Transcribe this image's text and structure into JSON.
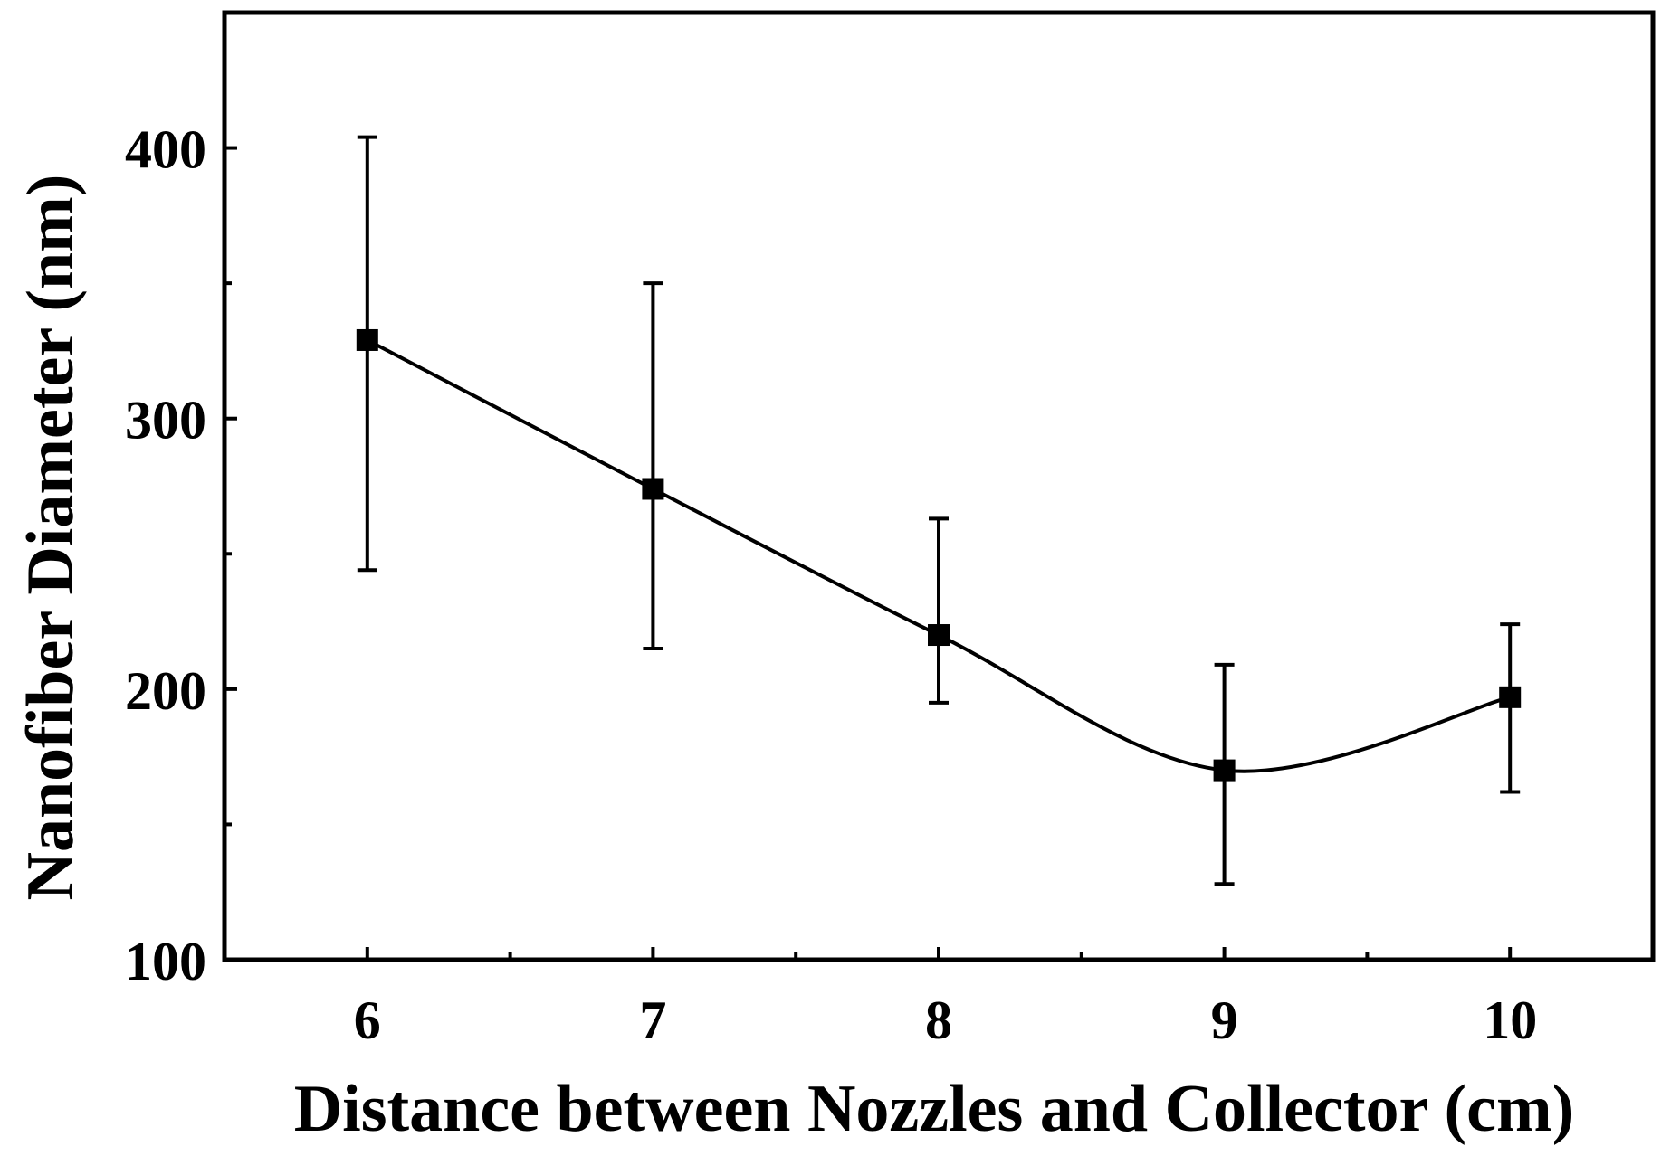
{
  "chart_data": {
    "type": "line",
    "title": "",
    "xlabel": "Distance between Nozzles and Collector (cm)",
    "ylabel": "Nanofiber Diameter (nm)",
    "xlim": [
      5.5,
      10.5
    ],
    "ylim": [
      100,
      450
    ],
    "x_ticks": [
      6,
      7,
      8,
      9,
      10
    ],
    "x_tick_labels": [
      "6",
      "7",
      "8",
      "9",
      "10"
    ],
    "x_minor_ticks": [
      5.5,
      6.5,
      7.5,
      8.5,
      9.5,
      10.5
    ],
    "y_ticks": [
      100,
      200,
      300,
      400
    ],
    "y_tick_labels": [
      "100",
      "200",
      "300",
      "400"
    ],
    "y_minor_ticks": [
      150,
      250,
      350
    ],
    "grid": false,
    "legend": "none",
    "series": [
      {
        "x": [
          6,
          7,
          8,
          9,
          10
        ],
        "y": [
          329,
          274,
          220,
          170,
          197
        ],
        "y_err_low": [
          244,
          215,
          195,
          128,
          162
        ],
        "y_err_high": [
          404,
          350,
          263,
          209,
          224
        ],
        "marker": "square",
        "line": "smooth",
        "color": "#000000"
      }
    ]
  }
}
